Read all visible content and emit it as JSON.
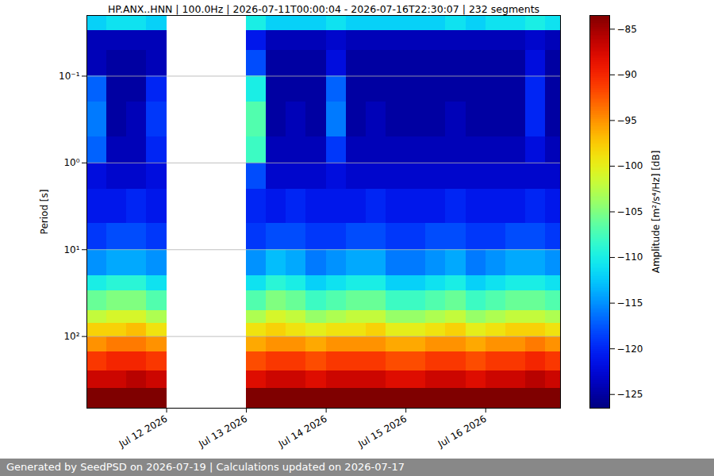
{
  "chart_data": {
    "type": "heatmap",
    "title": "HP.ANX..HNN | 100.0Hz | 2026-07-11T00:00:04 - 2026-07-16T22:30:07 | 232 segments",
    "ylabel": "Period [s]",
    "footer": "Generated by SeedPSD on 2026-07-19 | Calculations updated on 2026-07-17",
    "log": "y",
    "grid": "y",
    "xlim": [
      "2026-07-11T00:00:04Z",
      "2026-07-16T22:30:07Z"
    ],
    "xticks": [
      {
        "value": "2026-07-12T00:00:00Z",
        "label": "Jul 12 2026"
      },
      {
        "value": "2026-07-13T00:00:00Z",
        "label": "Jul 13 2026"
      },
      {
        "value": "2026-07-14T00:00:00Z",
        "label": "Jul 14 2026"
      },
      {
        "value": "2026-07-15T00:00:00Z",
        "label": "Jul 15 2026"
      },
      {
        "value": "2026-07-16T00:00:00Z",
        "label": "Jul 16 2026"
      }
    ],
    "ylim": [
      670,
      0.02
    ],
    "yticks": [
      {
        "value": 0.1,
        "label": "10⁻¹"
      },
      {
        "value": 1,
        "label": "10⁰"
      },
      {
        "value": 10,
        "label": "10¹"
      },
      {
        "value": 100,
        "label": "10²"
      }
    ],
    "x_edges": [
      "2026-07-11T00:00:04Z",
      "2026-07-11T06:00:00Z",
      "2026-07-11T12:00:00Z",
      "2026-07-11T18:00:00Z",
      "2026-07-12T00:00:00Z",
      "2026-07-12T06:00:00Z",
      "2026-07-12T12:00:00Z",
      "2026-07-12T18:00:00Z",
      "2026-07-13T00:00:00Z",
      "2026-07-13T06:00:00Z",
      "2026-07-13T12:00:00Z",
      "2026-07-13T18:00:00Z",
      "2026-07-14T00:00:00Z",
      "2026-07-14T06:00:00Z",
      "2026-07-14T12:00:00Z",
      "2026-07-14T18:00:00Z",
      "2026-07-15T00:00:00Z",
      "2026-07-15T06:00:00Z",
      "2026-07-15T12:00:00Z",
      "2026-07-15T18:00:00Z",
      "2026-07-16T00:00:00Z",
      "2026-07-16T06:00:00Z",
      "2026-07-16T12:00:00Z",
      "2026-07-16T18:00:00Z",
      "2026-07-16T22:30:07Z"
    ],
    "y_edges": [
      0.02,
      0.03,
      0.05,
      0.1,
      0.2,
      0.5,
      1,
      2,
      5,
      10,
      20,
      30,
      50,
      70,
      100,
      150,
      250,
      400,
      670
    ],
    "cells": [
      [
        -112,
        -124,
        -124,
        -117,
        -116,
        -117,
        -122,
        -121,
        -119,
        -115,
        -110,
        -106,
        -102,
        -98,
        -95,
        -91,
        -87,
        -82
      ],
      [
        -111,
        -124,
        -125,
        -125,
        -125,
        -124,
        -123,
        -121,
        -118,
        -114,
        -109,
        -105,
        -101,
        -98,
        -94,
        -90,
        -87,
        -82
      ],
      [
        -111,
        -124,
        -125,
        -125,
        -124,
        -124,
        -123,
        -120,
        -118,
        -114,
        -109,
        -105,
        -101,
        -97,
        -94,
        -90,
        -86,
        -82
      ],
      [
        -112,
        -124,
        -124,
        -120,
        -119,
        -120,
        -122,
        -121,
        -119,
        -115,
        -111,
        -107,
        -103,
        -99,
        -95,
        -91,
        -87,
        -82
      ],
      [
        null,
        null,
        null,
        null,
        null,
        null,
        null,
        null,
        null,
        null,
        null,
        null,
        null,
        null,
        null,
        null,
        null,
        null
      ],
      [
        null,
        null,
        null,
        null,
        null,
        null,
        null,
        null,
        null,
        null,
        null,
        null,
        null,
        null,
        null,
        null,
        null,
        null
      ],
      [
        null,
        null,
        null,
        null,
        null,
        null,
        null,
        null,
        null,
        null,
        null,
        null,
        null,
        null,
        null,
        null,
        null,
        null
      ],
      [
        null,
        null,
        null,
        null,
        null,
        null,
        null,
        null,
        null,
        null,
        null,
        null,
        null,
        null,
        null,
        null,
        null,
        null
      ],
      [
        -110,
        -121,
        -118,
        -110,
        -107,
        -108,
        -118,
        -120,
        -119,
        -115,
        -111,
        -107,
        -103,
        -99,
        -96,
        -92,
        -88,
        -82
      ],
      [
        -112,
        -124,
        -125,
        -125,
        -125,
        -124,
        -123,
        -121,
        -118,
        -113,
        -109,
        -105,
        -101,
        -98,
        -95,
        -91,
        -87,
        -82
      ],
      [
        -112,
        -124,
        -125,
        -125,
        -124,
        -124,
        -123,
        -120,
        -118,
        -114,
        -110,
        -106,
        -102,
        -99,
        -95,
        -91,
        -87,
        -82
      ],
      [
        -112,
        -124,
        -125,
        -125,
        -125,
        -124,
        -123,
        -121,
        -119,
        -116,
        -112,
        -108,
        -104,
        -100,
        -96,
        -92,
        -88,
        -82
      ],
      [
        -111,
        -123,
        -122,
        -117,
        -116,
        -119,
        -122,
        -121,
        -119,
        -115,
        -111,
        -107,
        -103,
        -99,
        -95,
        -91,
        -87,
        -82
      ],
      [
        -112,
        -124,
        -125,
        -125,
        -125,
        -124,
        -123,
        -121,
        -118,
        -114,
        -110,
        -106,
        -102,
        -99,
        -95,
        -91,
        -87,
        -82
      ],
      [
        -112,
        -124,
        -125,
        -125,
        -124,
        -124,
        -123,
        -120,
        -118,
        -114,
        -110,
        -106,
        -102,
        -98,
        -95,
        -91,
        -87,
        -82
      ],
      [
        -112,
        -124,
        -125,
        -125,
        -125,
        -124,
        -123,
        -121,
        -119,
        -116,
        -112,
        -108,
        -104,
        -100,
        -96,
        -92,
        -88,
        -82
      ],
      [
        -112,
        -124,
        -125,
        -125,
        -125,
        -124,
        -123,
        -121,
        -119,
        -116,
        -112,
        -108,
        -104,
        -100,
        -96,
        -92,
        -88,
        -82
      ],
      [
        -112,
        -124,
        -125,
        -125,
        -125,
        -124,
        -123,
        -121,
        -118,
        -115,
        -111,
        -107,
        -103,
        -99,
        -95,
        -91,
        -87,
        -82
      ],
      [
        -111,
        -124,
        -125,
        -125,
        -124,
        -124,
        -123,
        -120,
        -118,
        -114,
        -110,
        -106,
        -102,
        -98,
        -95,
        -91,
        -87,
        -82
      ],
      [
        -112,
        -124,
        -125,
        -125,
        -125,
        -124,
        -123,
        -121,
        -119,
        -116,
        -112,
        -108,
        -104,
        -100,
        -96,
        -92,
        -88,
        -82
      ],
      [
        -111,
        -124,
        -125,
        -125,
        -125,
        -124,
        -123,
        -121,
        -119,
        -115,
        -111,
        -107,
        -103,
        -99,
        -95,
        -91,
        -87,
        -82
      ],
      [
        -111,
        -124,
        -125,
        -125,
        -125,
        -124,
        -123,
        -121,
        -118,
        -114,
        -110,
        -106,
        -102,
        -98,
        -95,
        -91,
        -87,
        -82
      ],
      [
        -110,
        -123,
        -122,
        -120,
        -120,
        -122,
        -123,
        -120,
        -118,
        -114,
        -110,
        -106,
        -102,
        -98,
        -94,
        -90,
        -86,
        -82
      ],
      [
        -111,
        -124,
        -125,
        -125,
        -125,
        -124,
        -123,
        -121,
        -119,
        -115,
        -111,
        -107,
        -103,
        -99,
        -95,
        -91,
        -87,
        -82
      ]
    ],
    "colorbar": {
      "label": "Amplitude [m²/s⁴/Hz] [dB]",
      "range": [
        -126.5,
        -83.5
      ],
      "ticks": [
        -125,
        -120,
        -115,
        -110,
        -105,
        -100,
        -95,
        -90,
        -85
      ]
    }
  }
}
